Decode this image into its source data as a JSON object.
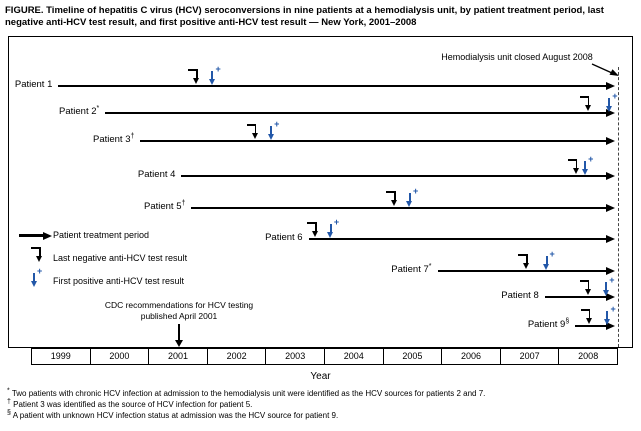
{
  "figure": {
    "title": "FIGURE. Timeline of hepatitis C virus (HCV) seroconversions in nine patients at a hemodialysis unit, by patient treatment period, last negative anti-HCV test result, and first positive anti-HCV test result — New York, 2001–2008"
  },
  "legend": {
    "items": [
      {
        "label": "Patient treatment period"
      },
      {
        "label": "Last negative anti-HCV test result"
      },
      {
        "label": "First positive anti-HCV test result"
      }
    ]
  },
  "annotations": {
    "unit_closed": "Hemodialysis unit closed August 2008",
    "cdc_line1": "CDC recommendations for HCV testing",
    "cdc_line2": "published April 2001"
  },
  "axis": {
    "label": "Year"
  },
  "icons": {
    "plus": "+"
  },
  "colors": {
    "positive_marker": "#2257a8",
    "line": "#000000"
  },
  "footnotes": [
    {
      "symbol": "*",
      "text": "Two patients with chronic HCV infection at admission to the hemodialysis unit were identified as the HCV sources for patients 2 and 7."
    },
    {
      "symbol": "†",
      "text": "Patient 3 was identified as the source of HCV infection for patient 5."
    },
    {
      "symbol": "§",
      "text": "A patient with unknown HCV infection status at admission was the HCV source for patient 9."
    }
  ],
  "chart_data": {
    "type": "timeline",
    "title": "Timeline of HCV seroconversions in nine patients at a hemodialysis unit, New York, 2001–2008",
    "xlabel": "Year",
    "x_axis": {
      "min": 1999,
      "max": 2009,
      "years": [
        1999,
        2000,
        2001,
        2002,
        2003,
        2004,
        2005,
        2006,
        2007,
        2008
      ]
    },
    "unit_closed_year": "August 2008",
    "cdc_recommendation_year": "April 2001",
    "patients": [
      {
        "name": "Patient 1",
        "sup": "",
        "start": 1999.45,
        "last_negative": 2001.82,
        "first_positive": 2002.08
      },
      {
        "name": "Patient 2",
        "sup": "*",
        "start": 2000.25,
        "last_negative": 2008.5,
        "first_positive": 2008.85
      },
      {
        "name": "Patient 3",
        "sup": "†",
        "start": 2000.85,
        "last_negative": 2002.82,
        "first_positive": 2003.08
      },
      {
        "name": "Patient 4",
        "sup": "",
        "start": 2001.55,
        "last_negative": 2008.3,
        "first_positive": 2008.44
      },
      {
        "name": "Patient 5",
        "sup": "†",
        "start": 2001.72,
        "last_negative": 2005.2,
        "first_positive": 2005.45
      },
      {
        "name": "Patient 6",
        "sup": "",
        "start": 2003.72,
        "last_negative": 2003.85,
        "first_positive": 2004.1
      },
      {
        "name": "Patient 7",
        "sup": "*",
        "start": 2005.92,
        "last_negative": 2007.45,
        "first_positive": 2007.78
      },
      {
        "name": "Patient 8",
        "sup": "",
        "start": 2007.75,
        "last_negative": 2008.5,
        "first_positive": 2008.8
      },
      {
        "name": "Patient 9",
        "sup": "§",
        "start": 2008.27,
        "last_negative": 2008.52,
        "first_positive": 2008.82
      }
    ]
  }
}
